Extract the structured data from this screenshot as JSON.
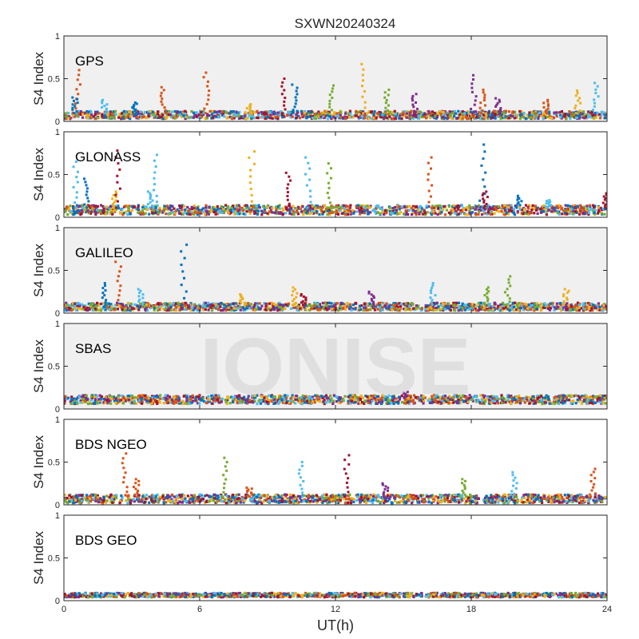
{
  "chart_data": {
    "type": "scatter",
    "title": "SXWN20240324",
    "xlabel": "UT(h)",
    "ylabel": "S4 Index",
    "xlim": [
      0,
      24
    ],
    "ylim": [
      0,
      1
    ],
    "xticks": [
      "0",
      "6",
      "12",
      "18",
      "24"
    ],
    "yticks": [
      "0",
      "0.5",
      "1"
    ],
    "grid": false,
    "watermark": "IONISE",
    "series_colors": [
      "#0072BD",
      "#D95319",
      "#EDB120",
      "#7E2F8E",
      "#77AC30",
      "#4DBEEE",
      "#A2142F"
    ],
    "panels": [
      {
        "name": "GPS",
        "background": "#f0f0f0",
        "baseline_range": [
          0.03,
          0.12
        ],
        "spikes": [
          {
            "x": 0.6,
            "y": 0.6,
            "color": "#D95319"
          },
          {
            "x": 0.5,
            "y": 0.28,
            "color": "#0072BD"
          },
          {
            "x": 1.8,
            "y": 0.25,
            "color": "#4DBEEE"
          },
          {
            "x": 3.1,
            "y": 0.22,
            "color": "#0072BD"
          },
          {
            "x": 4.4,
            "y": 0.4,
            "color": "#D95319"
          },
          {
            "x": 6.3,
            "y": 0.57,
            "color": "#D95319"
          },
          {
            "x": 8.2,
            "y": 0.2,
            "color": "#EDB120"
          },
          {
            "x": 9.7,
            "y": 0.5,
            "color": "#A2142F"
          },
          {
            "x": 10.2,
            "y": 0.43,
            "color": "#0072BD"
          },
          {
            "x": 11.8,
            "y": 0.42,
            "color": "#77AC30"
          },
          {
            "x": 13.2,
            "y": 0.67,
            "color": "#EDB120"
          },
          {
            "x": 14.3,
            "y": 0.37,
            "color": "#77AC30"
          },
          {
            "x": 15.5,
            "y": 0.32,
            "color": "#7E2F8E"
          },
          {
            "x": 18.1,
            "y": 0.54,
            "color": "#7E2F8E"
          },
          {
            "x": 18.5,
            "y": 0.37,
            "color": "#D95319"
          },
          {
            "x": 19.2,
            "y": 0.27,
            "color": "#7E2F8E"
          },
          {
            "x": 21.3,
            "y": 0.25,
            "color": "#D95319"
          },
          {
            "x": 22.7,
            "y": 0.36,
            "color": "#EDB120"
          },
          {
            "x": 23.5,
            "y": 0.45,
            "color": "#4DBEEE"
          }
        ]
      },
      {
        "name": "GLONASS",
        "background": "#ffffff",
        "baseline_range": [
          0.03,
          0.14
        ],
        "spikes": [
          {
            "x": 0.5,
            "y": 0.65,
            "color": "#4DBEEE"
          },
          {
            "x": 1.0,
            "y": 0.45,
            "color": "#0072BD"
          },
          {
            "x": 2.2,
            "y": 0.3,
            "color": "#EDB120"
          },
          {
            "x": 2.4,
            "y": 0.78,
            "color": "#A2142F"
          },
          {
            "x": 3.8,
            "y": 0.3,
            "color": "#4DBEEE"
          },
          {
            "x": 4.0,
            "y": 0.73,
            "color": "#4DBEEE"
          },
          {
            "x": 8.3,
            "y": 0.77,
            "color": "#EDB120"
          },
          {
            "x": 9.9,
            "y": 0.52,
            "color": "#A2142F"
          },
          {
            "x": 10.8,
            "y": 0.7,
            "color": "#4DBEEE"
          },
          {
            "x": 11.7,
            "y": 0.63,
            "color": "#77AC30"
          },
          {
            "x": 16.2,
            "y": 0.7,
            "color": "#D95319"
          },
          {
            "x": 18.5,
            "y": 0.85,
            "color": "#0072BD"
          },
          {
            "x": 18.6,
            "y": 0.3,
            "color": "#A2142F"
          },
          {
            "x": 20.1,
            "y": 0.25,
            "color": "#0072BD"
          },
          {
            "x": 21.4,
            "y": 0.2,
            "color": "#4DBEEE"
          },
          {
            "x": 23.9,
            "y": 0.28,
            "color": "#A2142F"
          }
        ]
      },
      {
        "name": "GALILEO",
        "background": "#f0f0f0",
        "baseline_range": [
          0.03,
          0.12
        ],
        "spikes": [
          {
            "x": 2.4,
            "y": 0.6,
            "color": "#D95319"
          },
          {
            "x": 1.8,
            "y": 0.35,
            "color": "#0072BD"
          },
          {
            "x": 3.4,
            "y": 0.28,
            "color": "#4DBEEE"
          },
          {
            "x": 5.3,
            "y": 0.8,
            "color": "#0072BD"
          },
          {
            "x": 7.9,
            "y": 0.22,
            "color": "#EDB120"
          },
          {
            "x": 10.2,
            "y": 0.3,
            "color": "#EDB120"
          },
          {
            "x": 10.6,
            "y": 0.22,
            "color": "#A2142F"
          },
          {
            "x": 13.6,
            "y": 0.25,
            "color": "#7E2F8E"
          },
          {
            "x": 16.3,
            "y": 0.35,
            "color": "#4DBEEE"
          },
          {
            "x": 18.7,
            "y": 0.3,
            "color": "#77AC30"
          },
          {
            "x": 19.6,
            "y": 0.43,
            "color": "#77AC30"
          },
          {
            "x": 22.2,
            "y": 0.28,
            "color": "#EDB120"
          }
        ]
      },
      {
        "name": "SBAS",
        "background": "#f0f0f0",
        "baseline_range": [
          0.06,
          0.16
        ],
        "spikes": [
          {
            "x": 15.1,
            "y": 0.2,
            "color": "#7E2F8E"
          }
        ]
      },
      {
        "name": "BDS NGEO",
        "background": "#ffffff",
        "baseline_range": [
          0.02,
          0.12
        ],
        "spikes": [
          {
            "x": 2.7,
            "y": 0.6,
            "color": "#D95319"
          },
          {
            "x": 3.2,
            "y": 0.3,
            "color": "#D95319"
          },
          {
            "x": 7.1,
            "y": 0.55,
            "color": "#77AC30"
          },
          {
            "x": 8.2,
            "y": 0.2,
            "color": "#D95319"
          },
          {
            "x": 10.5,
            "y": 0.5,
            "color": "#4DBEEE"
          },
          {
            "x": 12.5,
            "y": 0.58,
            "color": "#A2142F"
          },
          {
            "x": 14.2,
            "y": 0.25,
            "color": "#7E2F8E"
          },
          {
            "x": 17.7,
            "y": 0.3,
            "color": "#77AC30"
          },
          {
            "x": 19.9,
            "y": 0.38,
            "color": "#4DBEEE"
          },
          {
            "x": 23.4,
            "y": 0.42,
            "color": "#D95319"
          }
        ]
      },
      {
        "name": "BDS GEO",
        "background": "#ffffff",
        "baseline_range": [
          0.04,
          0.09
        ],
        "spikes": []
      }
    ]
  }
}
